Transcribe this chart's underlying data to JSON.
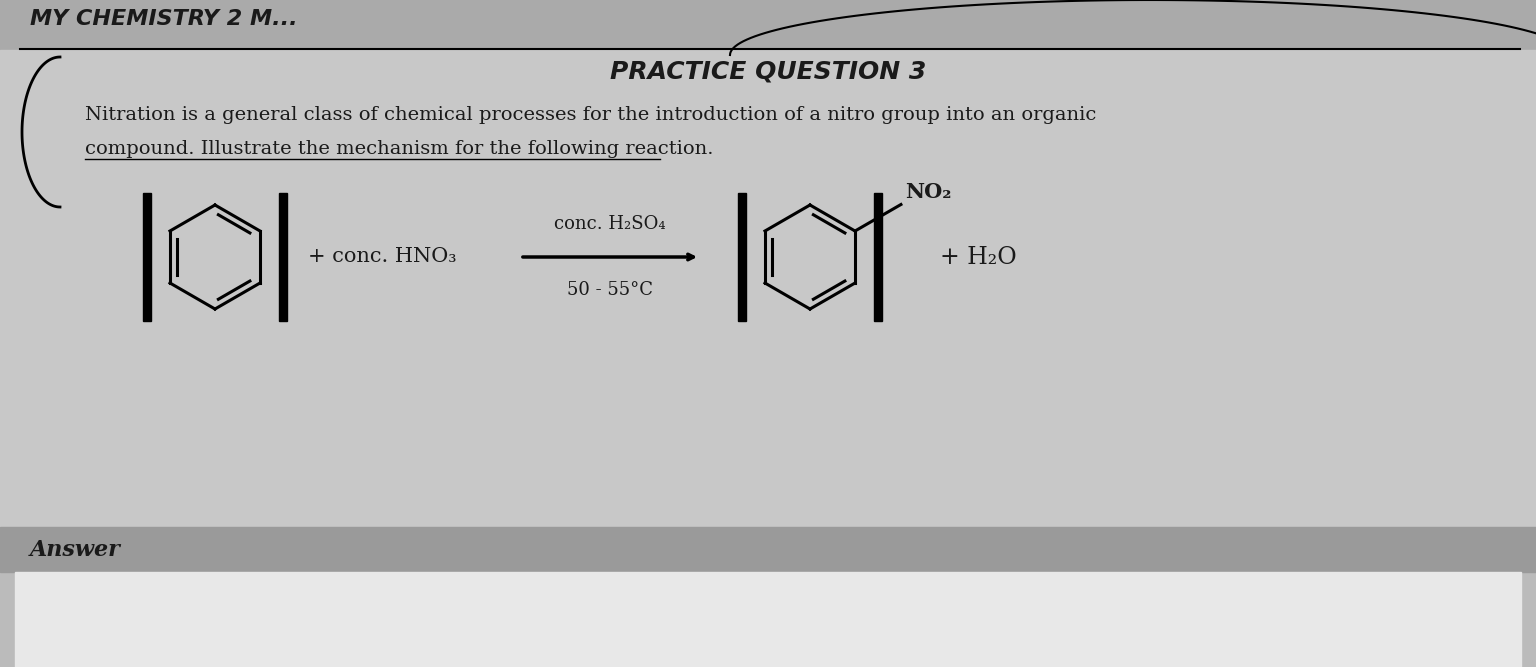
{
  "bg_color_top": "#aaaaaa",
  "bg_color_main": "#c8c8c8",
  "bg_color_answer_bar": "#9a9a9a",
  "bg_color_white": "#e8e8e8",
  "header_text": "MY CHEMISTRY 2 M...",
  "title_text": "PRACTICE QUESTION 3",
  "description_line1": "Nitration is a general class of chemical processes for the introduction of a nitro group into an organic",
  "description_line2": "compound. Illustrate the mechanism for the following reaction.",
  "condition_top": "conc. H₂SO₄",
  "condition_bottom": "50 - 55°C",
  "plus1": "+ conc. HNO₃",
  "plus2": "+ H₂O",
  "no2_label": "NO₂",
  "answer_label": "Answer",
  "text_color": "#1a1a1a",
  "title_font_size": 18,
  "body_font_size": 14,
  "reaction_font_size": 15
}
